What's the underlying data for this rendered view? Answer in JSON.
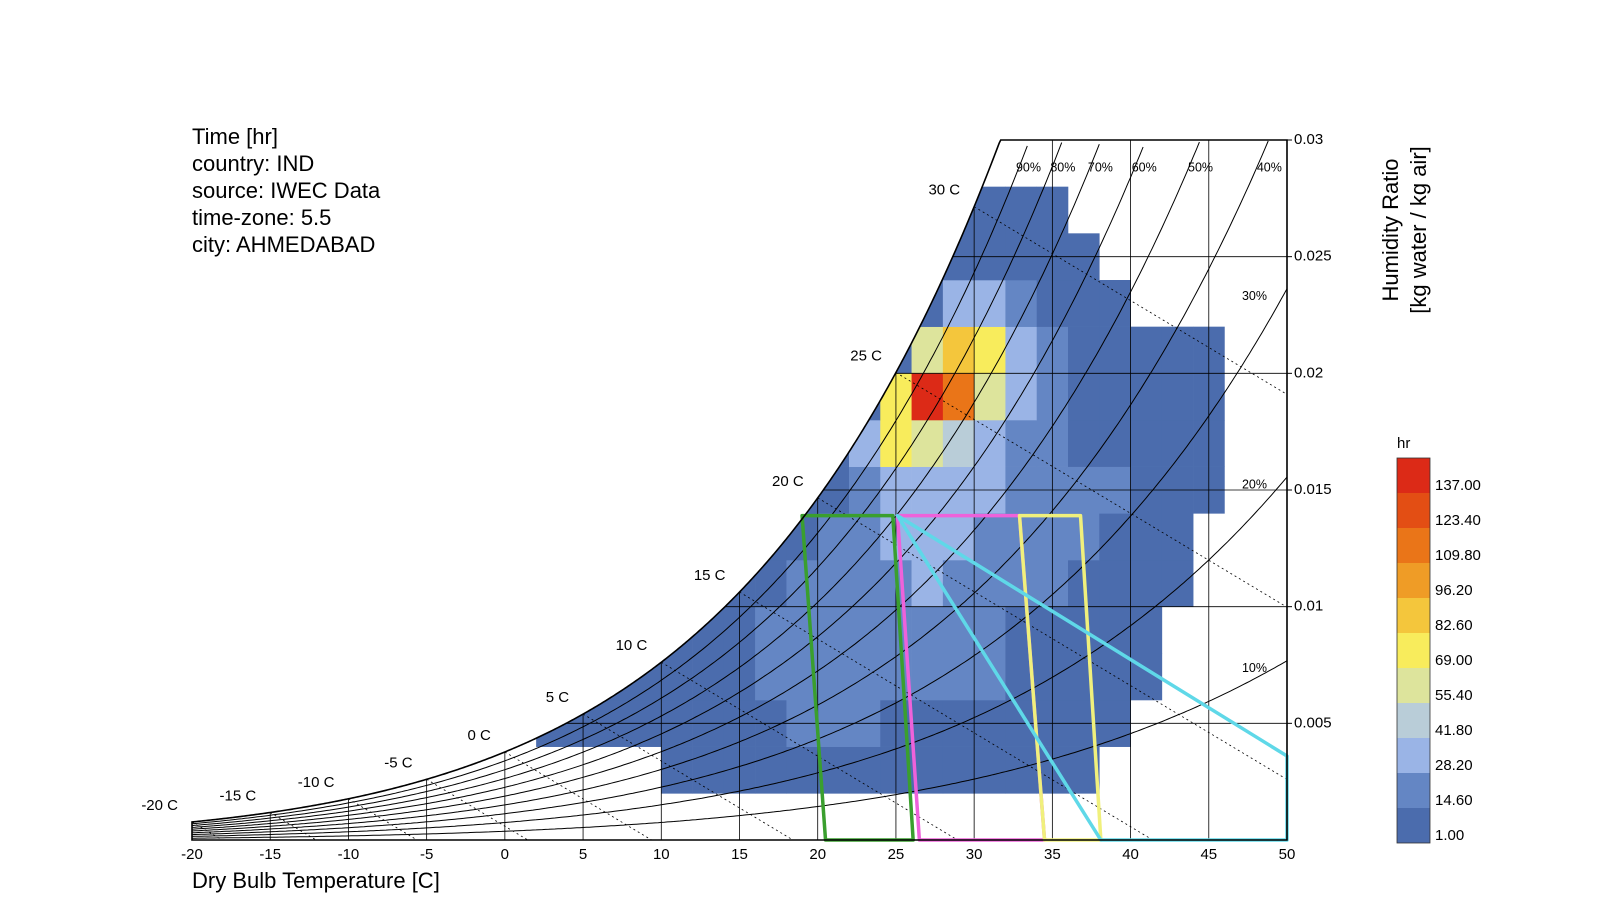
{
  "chart_data": {
    "type": "psychrometric",
    "info_lines": [
      "Time [hr]",
      "country: IND",
      "source: IWEC Data",
      "time-zone: 5.5",
      "city: AHMEDABAD"
    ],
    "x_label": "Dry Bulb Temperature [C]",
    "y_label": [
      "Humidity Ratio",
      "[kg water / kg air]"
    ],
    "xlim": [
      -20,
      50
    ],
    "xticks": [
      -20,
      -15,
      -10,
      -5,
      0,
      5,
      10,
      15,
      20,
      25,
      30,
      35,
      40,
      45,
      50
    ],
    "ylim": [
      0,
      0.03
    ],
    "yticks": [
      0.005,
      0.01,
      0.015,
      0.02,
      0.025,
      0.03
    ],
    "rh_lines": [
      {
        "value": 10,
        "label": "10%"
      },
      {
        "value": 20,
        "label": "20%"
      },
      {
        "value": 30,
        "label": "30%"
      },
      {
        "value": 40,
        "label": "40%"
      },
      {
        "value": 50,
        "label": "50%"
      },
      {
        "value": 60,
        "label": "60%"
      },
      {
        "value": 70,
        "label": "70%"
      },
      {
        "value": 80,
        "label": "80%"
      },
      {
        "value": 90,
        "label": "90%"
      }
    ],
    "wet_bulb_lines": [
      {
        "value": -20,
        "label": "-20 C"
      },
      {
        "value": -15,
        "label": "-15 C"
      },
      {
        "value": -10,
        "label": "-10 C"
      },
      {
        "value": -5,
        "label": "-5 C"
      },
      {
        "value": 0,
        "label": "0 C"
      },
      {
        "value": 5,
        "label": "5 C"
      },
      {
        "value": 10,
        "label": "10 C"
      },
      {
        "value": 15,
        "label": "15 C"
      },
      {
        "value": 20,
        "label": "20 C"
      },
      {
        "value": 25,
        "label": "25 C"
      },
      {
        "value": 30,
        "label": "30 C"
      }
    ],
    "heatmap": {
      "x_bins": [
        0,
        2,
        4,
        6,
        8,
        10,
        12,
        14,
        16,
        18,
        20,
        22,
        24,
        26,
        28,
        30,
        32,
        34,
        36,
        38,
        40,
        42,
        44,
        46
      ],
      "y_bins": [
        0.002,
        0.004,
        0.006,
        0.008,
        0.01,
        0.012,
        0.014,
        0.016,
        0.018,
        0.02,
        0.022,
        0.024,
        0.026,
        0.028
      ],
      "values": [
        [
          null,
          null,
          null,
          null,
          null,
          2,
          4,
          6,
          8,
          9,
          10,
          10,
          9,
          8,
          6,
          4,
          3,
          2,
          1,
          null,
          null,
          null,
          null
        ],
        [
          null,
          1,
          2,
          3,
          5,
          8,
          10,
          12,
          14,
          15,
          16,
          15,
          13,
          11,
          9,
          7,
          5,
          3,
          2,
          1,
          null,
          null,
          null
        ],
        [
          null,
          null,
          null,
          2,
          3,
          5,
          8,
          12,
          15,
          18,
          20,
          22,
          22,
          20,
          18,
          15,
          12,
          9,
          6,
          4,
          3,
          null,
          null
        ],
        [
          null,
          null,
          null,
          null,
          null,
          2,
          5,
          10,
          15,
          18,
          20,
          22,
          24,
          25,
          22,
          18,
          14,
          10,
          7,
          5,
          3,
          null,
          null
        ],
        [
          null,
          null,
          null,
          null,
          null,
          null,
          null,
          3,
          10,
          18,
          22,
          25,
          28,
          30,
          28,
          25,
          20,
          16,
          12,
          9,
          6,
          3,
          null
        ],
        [
          null,
          null,
          null,
          null,
          null,
          null,
          null,
          null,
          3,
          8,
          15,
          20,
          30,
          35,
          32,
          28,
          22,
          18,
          15,
          12,
          8,
          4,
          null
        ],
        [
          null,
          null,
          null,
          null,
          null,
          null,
          null,
          null,
          null,
          2,
          10,
          25,
          35,
          38,
          35,
          30,
          25,
          20,
          18,
          15,
          12,
          8,
          3
        ],
        [
          null,
          null,
          null,
          null,
          null,
          null,
          null,
          null,
          null,
          null,
          3,
          40,
          70,
          65,
          45,
          30,
          22,
          15,
          12,
          10,
          8,
          6,
          3
        ],
        [
          null,
          null,
          null,
          null,
          null,
          null,
          null,
          null,
          null,
          null,
          null,
          4,
          75,
          137,
          110,
          60,
          30,
          18,
          12,
          8,
          6,
          5,
          3
        ],
        [
          null,
          null,
          null,
          null,
          null,
          null,
          null,
          null,
          null,
          null,
          null,
          null,
          5,
          60,
          95,
          70,
          30,
          15,
          8,
          4,
          3,
          2,
          2
        ],
        [
          null,
          null,
          null,
          null,
          null,
          null,
          null,
          null,
          null,
          null,
          null,
          null,
          null,
          8,
          30,
          35,
          22,
          12,
          6,
          3,
          null,
          null,
          null
        ],
        [
          null,
          null,
          null,
          null,
          null,
          null,
          null,
          null,
          null,
          null,
          null,
          null,
          null,
          null,
          4,
          8,
          10,
          6,
          3,
          null,
          null,
          null,
          null
        ],
        [
          null,
          null,
          null,
          null,
          null,
          null,
          null,
          null,
          null,
          null,
          null,
          null,
          null,
          null,
          3,
          6,
          4,
          3,
          null,
          null,
          null,
          null,
          null
        ]
      ]
    },
    "colorbar": {
      "title": "hr",
      "ticks": [
        {
          "value": 1,
          "label": "1.00"
        },
        {
          "value": 14.6,
          "label": "14.60"
        },
        {
          "value": 28.2,
          "label": "28.20"
        },
        {
          "value": 41.8,
          "label": "41.80"
        },
        {
          "value": 55.4,
          "label": "55.40"
        },
        {
          "value": 69,
          "label": "69.00"
        },
        {
          "value": 82.6,
          "label": "82.60"
        },
        {
          "value": 96.2,
          "label": "96.20"
        },
        {
          "value": 109.8,
          "label": "109.80"
        },
        {
          "value": 123.4,
          "label": "123.40"
        },
        {
          "value": 137,
          "label": "137.00"
        }
      ],
      "colors": [
        "#4b6cad",
        "#6486c4",
        "#9ab4e6",
        "#b9cdd8",
        "#dde49c",
        "#f8ec5c",
        "#f4c63c",
        "#ef9c26",
        "#ea7518",
        "#e34e14",
        "#dc2a17"
      ]
    },
    "comfort_zones": [
      {
        "color": "#3a9f2e",
        "points": [
          [
            19,
            0.0139
          ],
          [
            24.8,
            0.0139
          ],
          [
            26.1,
            0
          ],
          [
            20.5,
            0
          ]
        ]
      },
      {
        "color": "#ee62da",
        "points": [
          [
            25.1,
            0.0139
          ],
          [
            32.9,
            0.0139
          ],
          [
            34.5,
            0
          ],
          [
            26.5,
            0
          ]
        ]
      },
      {
        "color": "#f0f07c",
        "points": [
          [
            32.9,
            0.0139
          ],
          [
            36.8,
            0.0139
          ],
          [
            38.1,
            0
          ],
          [
            34.5,
            0
          ]
        ]
      },
      {
        "color": "#5fd8e8",
        "points": [
          [
            25.1,
            0.0139
          ],
          [
            50,
            0.0036
          ],
          [
            50,
            0
          ],
          [
            38.1,
            0
          ]
        ]
      }
    ]
  }
}
